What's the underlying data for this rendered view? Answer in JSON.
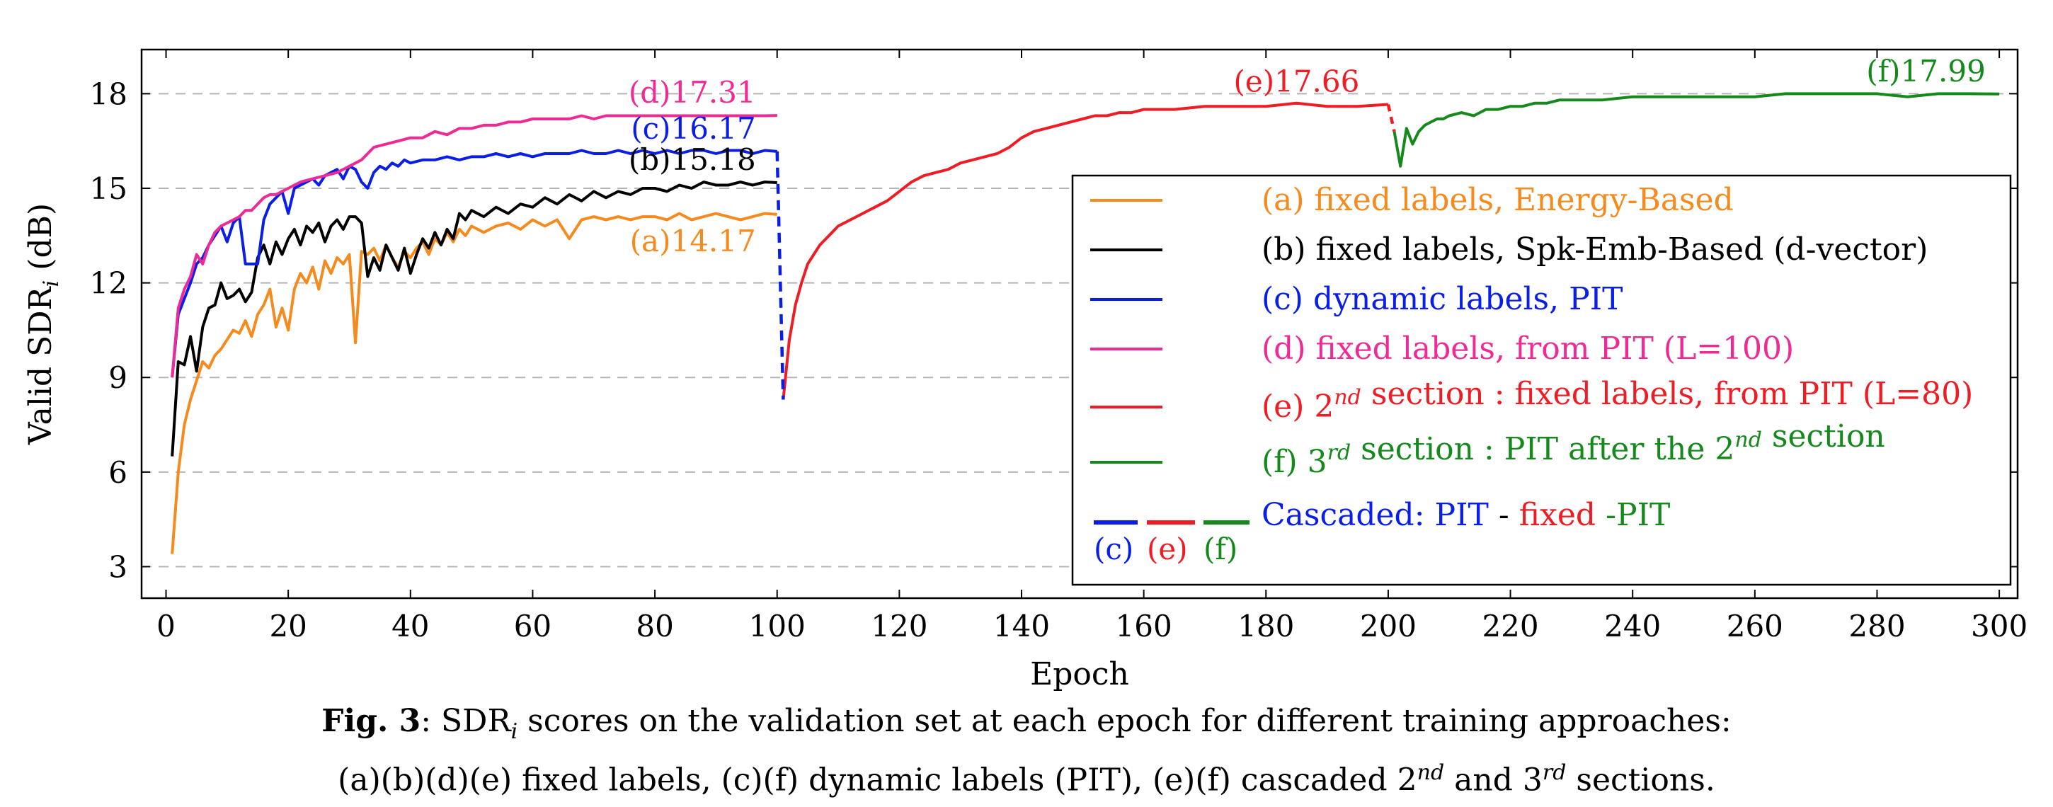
{
  "chart_data": {
    "type": "line",
    "xlabel": "Epoch",
    "ylabel": "Valid SDR",
    "ylabel_sub": "i",
    "ylabel_unit": "(dB)",
    "xlim": [
      -4,
      303
    ],
    "ylim": [
      2,
      19.4
    ],
    "xticks": [
      0,
      20,
      40,
      60,
      80,
      100,
      120,
      140,
      160,
      180,
      200,
      220,
      240,
      260,
      280,
      300
    ],
    "yticks": [
      3,
      6,
      9,
      12,
      15,
      18
    ],
    "grid": "horizontal dashed",
    "colors": {
      "a": "#f58a1f",
      "b": "#000000",
      "c": "#0a1ee6",
      "d": "#ee2a95",
      "e": "#ee1c24",
      "f": "#15891c"
    },
    "series": [
      {
        "id": "a",
        "name": "(a) fixed labels, Energy-Based",
        "final_label": "(a)14.17",
        "x": [
          1,
          2,
          3,
          4,
          5,
          6,
          7,
          8,
          9,
          10,
          11,
          12,
          13,
          14,
          15,
          16,
          17,
          18,
          19,
          20,
          21,
          22,
          23,
          24,
          25,
          26,
          27,
          28,
          29,
          30,
          31,
          32,
          33,
          34,
          35,
          36,
          37,
          38,
          39,
          40,
          41,
          42,
          43,
          44,
          45,
          46,
          47,
          48,
          49,
          50,
          52,
          54,
          56,
          58,
          60,
          62,
          64,
          66,
          68,
          70,
          72,
          74,
          76,
          78,
          80,
          82,
          84,
          86,
          88,
          90,
          92,
          94,
          96,
          98,
          100
        ],
        "values": [
          3.4,
          6.0,
          7.5,
          8.3,
          8.9,
          9.5,
          9.3,
          9.7,
          9.9,
          10.2,
          10.5,
          10.4,
          10.8,
          10.3,
          11.0,
          11.3,
          11.8,
          10.6,
          11.2,
          10.5,
          11.8,
          12.3,
          12.0,
          12.5,
          11.8,
          12.7,
          12.3,
          12.8,
          12.6,
          12.9,
          10.1,
          13.0,
          12.9,
          13.1,
          12.7,
          13.2,
          12.8,
          12.5,
          13.0,
          12.8,
          13.1,
          13.3,
          12.9,
          13.4,
          13.2,
          13.6,
          13.3,
          13.7,
          13.5,
          13.8,
          13.6,
          13.8,
          13.9,
          13.7,
          14.0,
          13.8,
          14.0,
          13.4,
          14.0,
          14.1,
          14.0,
          14.1,
          14.0,
          14.1,
          14.1,
          14.0,
          14.2,
          14.0,
          14.1,
          14.2,
          14.1,
          14.0,
          14.1,
          14.2,
          14.17
        ]
      },
      {
        "id": "b",
        "name": "(b) fixed labels, Spk-Emb-Based (d-vector)",
        "final_label": "(b)15.18",
        "x": [
          1,
          2,
          3,
          4,
          5,
          6,
          7,
          8,
          9,
          10,
          11,
          12,
          13,
          14,
          15,
          16,
          17,
          18,
          19,
          20,
          21,
          22,
          23,
          24,
          25,
          26,
          27,
          28,
          29,
          30,
          31,
          32,
          33,
          34,
          35,
          36,
          37,
          38,
          39,
          40,
          41,
          42,
          43,
          44,
          45,
          46,
          47,
          48,
          49,
          50,
          52,
          54,
          56,
          58,
          60,
          62,
          64,
          66,
          68,
          70,
          72,
          74,
          76,
          78,
          80,
          82,
          84,
          86,
          88,
          90,
          92,
          94,
          96,
          98,
          100
        ],
        "values": [
          6.5,
          9.5,
          9.4,
          10.3,
          9.2,
          10.6,
          11.2,
          11.3,
          12.0,
          11.5,
          11.6,
          11.8,
          11.4,
          11.7,
          12.8,
          13.2,
          12.6,
          13.3,
          12.9,
          13.4,
          13.7,
          13.2,
          13.8,
          13.6,
          13.9,
          13.3,
          13.8,
          14.0,
          13.7,
          14.1,
          14.1,
          13.9,
          12.2,
          12.8,
          12.4,
          13.2,
          12.8,
          12.4,
          13.1,
          12.3,
          12.9,
          13.4,
          13.1,
          13.6,
          13.2,
          13.7,
          13.4,
          14.2,
          14.0,
          14.3,
          14.1,
          14.4,
          14.2,
          14.5,
          14.4,
          14.7,
          14.5,
          14.8,
          14.6,
          14.9,
          14.7,
          14.9,
          14.8,
          15.0,
          15.0,
          14.9,
          15.1,
          15.0,
          15.2,
          15.1,
          15.1,
          15.2,
          15.1,
          15.2,
          15.18
        ]
      },
      {
        "id": "c",
        "name": "(c) dynamic labels, PIT",
        "final_label": "(c)16.17",
        "x": [
          1,
          2,
          3,
          4,
          5,
          6,
          7,
          8,
          9,
          10,
          11,
          12,
          13,
          14,
          15,
          16,
          17,
          18,
          19,
          20,
          21,
          22,
          23,
          24,
          25,
          26,
          27,
          28,
          29,
          30,
          31,
          32,
          33,
          34,
          35,
          36,
          37,
          38,
          39,
          40,
          42,
          44,
          46,
          48,
          50,
          52,
          54,
          56,
          58,
          60,
          62,
          64,
          66,
          68,
          70,
          72,
          74,
          76,
          78,
          80,
          82,
          84,
          86,
          88,
          90,
          92,
          94,
          96,
          98,
          100
        ],
        "values": [
          9.0,
          11.0,
          11.5,
          12.0,
          12.6,
          12.8,
          13.2,
          13.5,
          13.8,
          13.3,
          13.9,
          14.1,
          12.6,
          12.6,
          12.6,
          14.0,
          14.5,
          14.7,
          14.9,
          14.2,
          15.0,
          15.1,
          15.2,
          15.3,
          15.1,
          15.4,
          15.5,
          15.6,
          15.3,
          15.7,
          15.6,
          15.2,
          15.0,
          15.5,
          15.7,
          15.6,
          15.8,
          15.7,
          15.9,
          15.8,
          15.9,
          15.9,
          16.0,
          15.9,
          16.0,
          16.0,
          16.1,
          16.0,
          16.1,
          16.0,
          16.1,
          16.1,
          16.1,
          16.2,
          16.1,
          16.1,
          16.2,
          16.1,
          16.2,
          16.1,
          16.2,
          16.1,
          16.2,
          16.2,
          16.1,
          16.2,
          16.2,
          16.1,
          16.2,
          16.17
        ]
      },
      {
        "id": "d",
        "name": "(d) fixed labels, from PIT (L=100)",
        "final_label": "(d)17.31",
        "x": [
          1,
          2,
          3,
          4,
          5,
          6,
          7,
          8,
          9,
          10,
          11,
          12,
          13,
          14,
          15,
          16,
          17,
          18,
          19,
          20,
          22,
          24,
          26,
          28,
          30,
          32,
          34,
          36,
          38,
          40,
          42,
          44,
          46,
          48,
          50,
          52,
          54,
          56,
          58,
          60,
          62,
          64,
          66,
          68,
          70,
          72,
          74,
          76,
          78,
          80,
          82,
          84,
          86,
          88,
          90,
          92,
          94,
          96,
          98,
          100
        ],
        "values": [
          9.0,
          11.2,
          11.8,
          12.2,
          12.9,
          12.6,
          13.2,
          13.6,
          13.8,
          13.9,
          14.0,
          14.1,
          14.3,
          14.3,
          14.5,
          14.7,
          14.8,
          14.8,
          14.9,
          15.0,
          15.2,
          15.3,
          15.4,
          15.5,
          15.7,
          15.9,
          16.3,
          16.4,
          16.5,
          16.6,
          16.6,
          16.8,
          16.7,
          16.9,
          16.9,
          17.0,
          17.0,
          17.1,
          17.1,
          17.2,
          17.2,
          17.2,
          17.2,
          17.3,
          17.2,
          17.3,
          17.3,
          17.3,
          17.3,
          17.3,
          17.3,
          17.3,
          17.3,
          17.3,
          17.3,
          17.3,
          17.3,
          17.3,
          17.3,
          17.31
        ]
      },
      {
        "id": "e",
        "name": "(e) 2nd section : fixed labels, from PIT (L=80)",
        "final_label": "(e)17.66",
        "x": [
          101,
          102,
          103,
          104,
          105,
          106,
          107,
          108,
          109,
          110,
          112,
          114,
          116,
          118,
          120,
          122,
          124,
          126,
          128,
          130,
          132,
          134,
          136,
          138,
          140,
          142,
          144,
          146,
          148,
          150,
          152,
          154,
          156,
          158,
          160,
          165,
          170,
          175,
          180,
          185,
          190,
          195,
          200
        ],
        "values": [
          8.3,
          10.2,
          11.3,
          12.0,
          12.6,
          12.9,
          13.2,
          13.4,
          13.6,
          13.8,
          14.0,
          14.2,
          14.4,
          14.6,
          14.9,
          15.2,
          15.4,
          15.5,
          15.6,
          15.8,
          15.9,
          16.0,
          16.1,
          16.3,
          16.6,
          16.8,
          16.9,
          17.0,
          17.1,
          17.2,
          17.3,
          17.3,
          17.4,
          17.4,
          17.5,
          17.5,
          17.6,
          17.6,
          17.6,
          17.7,
          17.6,
          17.6,
          17.66
        ]
      },
      {
        "id": "f",
        "name": "(f) 3rd section : PIT after the 2nd section",
        "final_label": "(f)17.99",
        "x": [
          201,
          202,
          203,
          204,
          205,
          206,
          207,
          208,
          209,
          210,
          212,
          214,
          216,
          218,
          220,
          222,
          224,
          226,
          228,
          230,
          235,
          240,
          245,
          250,
          255,
          260,
          265,
          270,
          275,
          280,
          285,
          290,
          295,
          300
        ],
        "values": [
          16.8,
          15.7,
          16.9,
          16.4,
          16.8,
          17.0,
          17.1,
          17.2,
          17.2,
          17.3,
          17.4,
          17.3,
          17.5,
          17.5,
          17.6,
          17.6,
          17.7,
          17.7,
          17.8,
          17.8,
          17.8,
          17.9,
          17.9,
          17.9,
          17.9,
          17.9,
          18.0,
          18.0,
          18.0,
          18.0,
          17.9,
          18.0,
          18.0,
          17.99
        ]
      }
    ],
    "legend": {
      "placement": "center-right",
      "entries": [
        {
          "series": "a",
          "parts": [
            {
              "t": "(a) fixed labels, Energy-Based",
              "c": "a"
            }
          ]
        },
        {
          "series": "b",
          "parts": [
            {
              "t": "(b) fixed labels, Spk-Emb-Based (d-vector)",
              "c": "b"
            }
          ]
        },
        {
          "series": "c",
          "parts": [
            {
              "t": "(c) dynamic labels, PIT",
              "c": "c"
            }
          ]
        },
        {
          "series": "d",
          "parts": [
            {
              "t": "(d) fixed labels, from PIT (L=100)",
              "c": "d"
            }
          ]
        },
        {
          "series": "e",
          "parts": [
            {
              "t": "(e) 2",
              "c": "e"
            },
            {
              "t": "nd",
              "c": "e",
              "sup": true
            },
            {
              "t": " section : fixed labels, from PIT (L=80)",
              "c": "e"
            }
          ]
        },
        {
          "series": "f",
          "parts": [
            {
              "t": "(f) 3",
              "c": "f"
            },
            {
              "t": "rd",
              "c": "f",
              "sup": true
            },
            {
              "t": " section : PIT after the 2",
              "c": "f"
            },
            {
              "t": "nd",
              "c": "f",
              "sup": true
            },
            {
              "t": " section",
              "c": "f"
            }
          ]
        },
        {
          "series": "cascaded",
          "parts": [
            {
              "t": "Cascaded: ",
              "c": "c"
            },
            {
              "t": "PIT",
              "c": "c"
            },
            {
              "t": " - ",
              "c": "b"
            },
            {
              "t": "fixed",
              "c": "e"
            },
            {
              "t": " -PIT",
              "c": "f"
            }
          ],
          "swatch_labels": [
            {
              "t": "(c)",
              "c": "c"
            },
            {
              "t": "(e)",
              "c": "e"
            },
            {
              "t": "(f)",
              "c": "f"
            }
          ]
        }
      ]
    }
  },
  "caption": {
    "fig_label": "Fig. 3",
    "line1": ": SDR",
    "line1_sub": "i",
    "line1_rest": " scores on the validation set at each epoch for different training approaches:",
    "line2_a": "(a)(b)(d)(e) fixed labels, (c)(f) dynamic labels (PIT), (e)(f) cascaded 2",
    "line2_sup1": "nd",
    "line2_b": " and 3",
    "line2_sup2": "rd",
    "line2_c": " sections."
  }
}
